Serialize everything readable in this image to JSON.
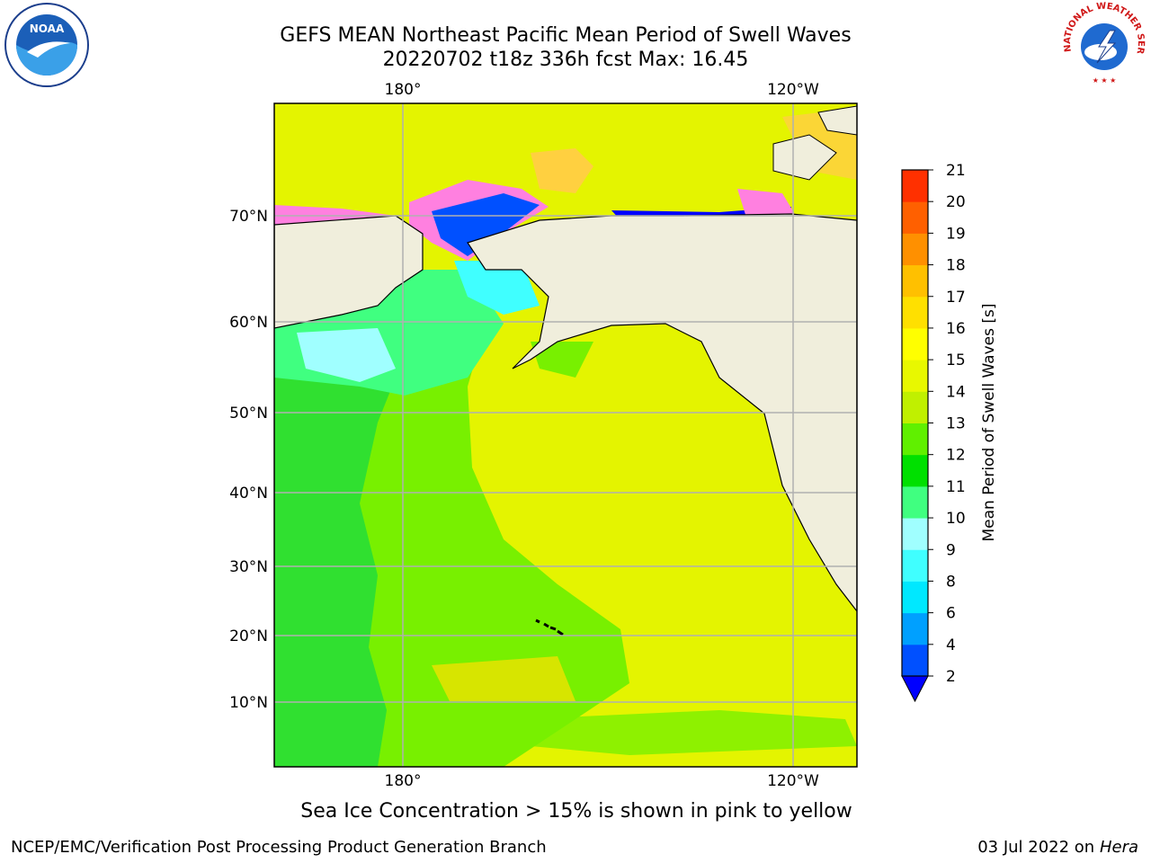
{
  "title": {
    "line1": "GEFS MEAN Northeast Pacific Mean Period of Swell Waves",
    "line2": "20220702 t18z 336h fcst   Max: 16.45"
  },
  "map": {
    "lon_labels_top": [
      "180°",
      "120°W"
    ],
    "lon_labels_bottom": [
      "180°",
      "120°W"
    ],
    "lat_labels": [
      "70°N",
      "60°N",
      "50°N",
      "40°N",
      "30°N",
      "20°N",
      "10°N"
    ]
  },
  "colorbar": {
    "label": "Mean Period of Swell Waves [s]",
    "ticks": [
      "2",
      "4",
      "6",
      "8",
      "9",
      "10",
      "11",
      "12",
      "13",
      "14",
      "15",
      "16",
      "17",
      "18",
      "19",
      "20",
      "21"
    ],
    "colors": [
      "#0050ff",
      "#00a0ff",
      "#00e8ff",
      "#40ffff",
      "#a0ffff",
      "#40ff80",
      "#00e000",
      "#60f000",
      "#c0f000",
      "#e8f800",
      "#ffff00",
      "#ffe000",
      "#ffc000",
      "#ff9000",
      "#ff6000",
      "#ff3000"
    ],
    "under_color": "#0000ff"
  },
  "note": "Sea Ice Concentration > 15% is shown in pink to yellow",
  "footer": {
    "left": "NCEP/EMC/Verification Post Processing Product Generation Branch",
    "date": "03 Jul 2022 on ",
    "host": "Hera"
  },
  "colors": {
    "land": "#f0eedc",
    "ocean_warm": "#e4f400",
    "ocean_mid": "#78f000",
    "ocean_cool": "#30e030",
    "ice_pink": "#ff80e0",
    "ice_yellow": "#ffd040",
    "ice_blue": "#0000ff"
  },
  "logos": {
    "left": "noaa-logo",
    "left_text": "NOAA",
    "right": "nws-logo",
    "right_text": "NATIONAL WEATHER SERVICE"
  }
}
